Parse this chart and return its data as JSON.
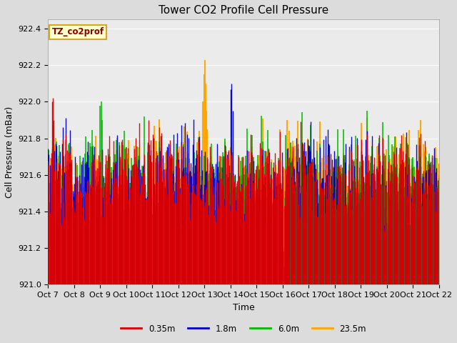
{
  "title": "Tower CO2 Profile Cell Pressure",
  "ylabel": "Cell Pressure (mBar)",
  "xlabel": "Time",
  "annotation_text": "TZ_co2prof",
  "annotation_color": "#8B0000",
  "annotation_bg": "#FFFFCC",
  "annotation_border": "#DAA520",
  "ylim": [
    921.0,
    922.45
  ],
  "yticks": [
    921.0,
    921.2,
    921.4,
    921.6,
    921.8,
    922.0,
    922.2,
    922.4
  ],
  "series_labels": [
    "0.35m",
    "1.8m",
    "6.0m",
    "23.5m"
  ],
  "series_colors": [
    "#DD0000",
    "#0000CC",
    "#00BB00",
    "#FFA500"
  ],
  "n_points": 480,
  "base_mean": 921.6,
  "xtick_labels": [
    "Oct 7",
    "Oct 8",
    "Oct 9",
    "Oct 10",
    "Oct 11",
    "Oct 12",
    "Oct 13",
    "Oct 14",
    "Oct 15",
    "Oct 16",
    "Oct 17",
    "Oct 18",
    "Oct 19",
    "Oct 20",
    "Oct 21",
    "Oct 22"
  ],
  "bg_color": "#DCDCDC",
  "plot_bg": "#EBEBEB",
  "grid_color": "white",
  "title_fontsize": 11,
  "tick_fontsize": 8,
  "label_fontsize": 9,
  "figsize": [
    6.4,
    4.8
  ],
  "dpi": 100
}
